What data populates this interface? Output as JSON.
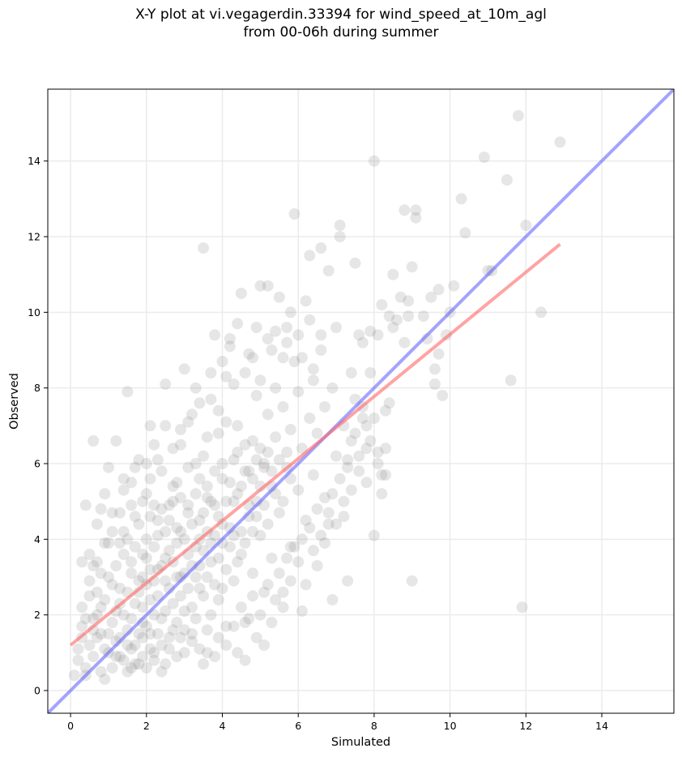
{
  "chart_data": {
    "type": "scatter",
    "title_line1": "X-Y plot at vi.vegagerdin.33394 for wind_speed_at_10m_agl",
    "title_line2": "from 00-06h during summer",
    "xlabel": "Simulated",
    "ylabel": "Observed",
    "xlim": [
      -0.6,
      15.9
    ],
    "ylim": [
      -0.6,
      15.9
    ],
    "xticks": [
      0,
      2,
      4,
      6,
      8,
      10,
      12,
      14
    ],
    "yticks": [
      0,
      2,
      4,
      6,
      8,
      10,
      12,
      14
    ],
    "grid": true,
    "point_color": "#808080",
    "reference_line": {
      "color": "#6666ff",
      "from": [
        -0.6,
        -0.6
      ],
      "to": [
        15.9,
        15.9
      ]
    },
    "regression_line": {
      "color": "#ff6666",
      "from": [
        0,
        1.2
      ],
      "to": [
        12.9,
        11.8
      ]
    },
    "points": [
      [
        0.1,
        0.4
      ],
      [
        0.2,
        1.1
      ],
      [
        0.3,
        1.7
      ],
      [
        0.3,
        3.4
      ],
      [
        0.4,
        4.9
      ],
      [
        0.4,
        0.6
      ],
      [
        0.5,
        2.5
      ],
      [
        0.5,
        3.6
      ],
      [
        0.6,
        6.6
      ],
      [
        0.6,
        1.9
      ],
      [
        0.7,
        4.4
      ],
      [
        0.7,
        3.4
      ],
      [
        0.8,
        2.2
      ],
      [
        0.8,
        4.8
      ],
      [
        0.9,
        0.3
      ],
      [
        0.9,
        5.2
      ],
      [
        1.0,
        5.9
      ],
      [
        1.0,
        1.5
      ],
      [
        1.1,
        2.8
      ],
      [
        1.1,
        4.7
      ],
      [
        1.2,
        6.6
      ],
      [
        1.2,
        0.9
      ],
      [
        1.3,
        3.9
      ],
      [
        1.3,
        2.3
      ],
      [
        1.4,
        5.6
      ],
      [
        1.4,
        4.2
      ],
      [
        1.5,
        7.9
      ],
      [
        1.5,
        1.2
      ],
      [
        1.6,
        3.1
      ],
      [
        1.6,
        5.5
      ],
      [
        1.7,
        0.7
      ],
      [
        1.7,
        4.6
      ],
      [
        1.8,
        2.6
      ],
      [
        1.8,
        6.1
      ],
      [
        1.9,
        3.6
      ],
      [
        1.9,
        1.8
      ],
      [
        2.0,
        5.2
      ],
      [
        2.0,
        4.0
      ],
      [
        2.1,
        7.0
      ],
      [
        2.1,
        2.4
      ],
      [
        2.2,
        6.5
      ],
      [
        2.2,
        1.0
      ],
      [
        2.3,
        4.5
      ],
      [
        2.3,
        3.2
      ],
      [
        2.4,
        5.8
      ],
      [
        2.4,
        0.5
      ],
      [
        2.5,
        2.9
      ],
      [
        2.5,
        8.1
      ],
      [
        2.6,
        4.9
      ],
      [
        2.6,
        3.7
      ],
      [
        2.7,
        6.4
      ],
      [
        2.7,
        1.6
      ],
      [
        2.8,
        5.5
      ],
      [
        2.8,
        4.3
      ],
      [
        2.9,
        3.0
      ],
      [
        2.9,
        6.9
      ],
      [
        3.0,
        8.5
      ],
      [
        3.0,
        2.1
      ],
      [
        3.1,
        4.7
      ],
      [
        3.1,
        5.9
      ],
      [
        3.2,
        1.3
      ],
      [
        3.2,
        7.3
      ],
      [
        3.3,
        3.8
      ],
      [
        3.3,
        8.0
      ],
      [
        3.4,
        4.5
      ],
      [
        3.4,
        2.7
      ],
      [
        3.5,
        6.2
      ],
      [
        3.5,
        11.7
      ],
      [
        3.6,
        5.1
      ],
      [
        3.6,
        1.0
      ],
      [
        3.7,
        3.4
      ],
      [
        3.7,
        7.7
      ],
      [
        3.8,
        9.4
      ],
      [
        3.8,
        4.9
      ],
      [
        3.9,
        2.4
      ],
      [
        3.9,
        6.8
      ],
      [
        4.0,
        5.6
      ],
      [
        4.0,
        3.9
      ],
      [
        4.1,
        8.3
      ],
      [
        4.1,
        1.7
      ],
      [
        4.2,
        4.3
      ],
      [
        4.2,
        9.1
      ],
      [
        4.3,
        6.1
      ],
      [
        4.3,
        2.9
      ],
      [
        4.4,
        5.2
      ],
      [
        4.4,
        7.0
      ],
      [
        4.5,
        3.6
      ],
      [
        4.5,
        10.5
      ],
      [
        4.6,
        5.8
      ],
      [
        4.6,
        1.8
      ],
      [
        4.7,
        4.6
      ],
      [
        4.7,
        8.9
      ],
      [
        4.8,
        6.6
      ],
      [
        4.8,
        3.1
      ],
      [
        4.9,
        5.0
      ],
      [
        4.9,
        7.8
      ],
      [
        5.0,
        10.7
      ],
      [
        5.0,
        4.1
      ],
      [
        5.1,
        6.0
      ],
      [
        5.1,
        2.6
      ],
      [
        5.2,
        7.3
      ],
      [
        5.2,
        9.3
      ],
      [
        5.3,
        5.4
      ],
      [
        5.3,
        3.5
      ],
      [
        5.4,
        8.0
      ],
      [
        5.4,
        6.7
      ],
      [
        5.5,
        10.4
      ],
      [
        5.5,
        4.7
      ],
      [
        5.6,
        7.5
      ],
      [
        5.6,
        2.2
      ],
      [
        5.7,
        9.2
      ],
      [
        5.7,
        5.9
      ],
      [
        5.8,
        6.9
      ],
      [
        5.8,
        3.8
      ],
      [
        5.9,
        8.7
      ],
      [
        5.9,
        12.6
      ],
      [
        6.0,
        5.3
      ],
      [
        6.0,
        7.9
      ],
      [
        6.1,
        2.1
      ],
      [
        6.1,
        6.4
      ],
      [
        6.2,
        10.3
      ],
      [
        6.2,
        4.5
      ],
      [
        6.3,
        11.5
      ],
      [
        6.3,
        7.2
      ],
      [
        6.4,
        5.7
      ],
      [
        6.4,
        8.2
      ],
      [
        6.5,
        3.3
      ],
      [
        6.5,
        6.8
      ],
      [
        6.6,
        9.0
      ],
      [
        6.6,
        11.7
      ],
      [
        6.7,
        5.1
      ],
      [
        6.7,
        7.5
      ],
      [
        6.8,
        4.4
      ],
      [
        6.8,
        11.1
      ],
      [
        6.9,
        2.4
      ],
      [
        6.9,
        8.0
      ],
      [
        7.0,
        6.2
      ],
      [
        7.0,
        9.6
      ],
      [
        7.1,
        12.3
      ],
      [
        7.1,
        12.0
      ],
      [
        7.2,
        7.0
      ],
      [
        7.2,
        4.6
      ],
      [
        7.3,
        2.9
      ],
      [
        7.3,
        5.9
      ],
      [
        7.4,
        8.4
      ],
      [
        7.4,
        6.6
      ],
      [
        7.5,
        7.7
      ],
      [
        7.5,
        11.3
      ],
      [
        7.6,
        9.4
      ],
      [
        7.6,
        5.8
      ],
      [
        7.7,
        7.2
      ],
      [
        7.7,
        9.2
      ],
      [
        7.8,
        6.4
      ],
      [
        7.8,
        5.5
      ],
      [
        7.9,
        8.4
      ],
      [
        7.9,
        9.5
      ],
      [
        8.0,
        14.0
      ],
      [
        8.0,
        4.1
      ],
      [
        8.1,
        6.3
      ],
      [
        8.1,
        9.4
      ],
      [
        8.2,
        10.2
      ],
      [
        8.2,
        5.2
      ],
      [
        8.3,
        6.4
      ],
      [
        8.3,
        5.7
      ],
      [
        8.4,
        9.9
      ],
      [
        8.4,
        7.6
      ],
      [
        8.5,
        11.0
      ],
      [
        8.5,
        9.6
      ],
      [
        8.6,
        9.8
      ],
      [
        8.7,
        10.4
      ],
      [
        8.8,
        12.7
      ],
      [
        8.8,
        9.2
      ],
      [
        8.9,
        10.3
      ],
      [
        8.9,
        9.9
      ],
      [
        9.0,
        11.2
      ],
      [
        9.0,
        2.9
      ],
      [
        9.1,
        12.7
      ],
      [
        9.1,
        12.5
      ],
      [
        9.3,
        9.9
      ],
      [
        9.4,
        9.3
      ],
      [
        9.5,
        10.4
      ],
      [
        9.6,
        8.5
      ],
      [
        9.6,
        8.1
      ],
      [
        9.7,
        8.9
      ],
      [
        9.7,
        10.6
      ],
      [
        9.8,
        7.8
      ],
      [
        9.9,
        9.4
      ],
      [
        10.0,
        10.0
      ],
      [
        10.1,
        10.7
      ],
      [
        10.3,
        13.0
      ],
      [
        10.4,
        12.1
      ],
      [
        10.9,
        14.1
      ],
      [
        11.0,
        11.1
      ],
      [
        11.1,
        11.1
      ],
      [
        11.5,
        13.5
      ],
      [
        11.6,
        8.2
      ],
      [
        11.8,
        15.2
      ],
      [
        11.9,
        2.2
      ],
      [
        12.0,
        12.3
      ],
      [
        12.4,
        10.0
      ],
      [
        12.9,
        14.5
      ],
      [
        0.5,
        1.2
      ],
      [
        0.8,
        1.5
      ],
      [
        0.9,
        2.4
      ],
      [
        1.0,
        1.0
      ],
      [
        1.0,
        3.0
      ],
      [
        1.1,
        1.8
      ],
      [
        1.2,
        2.1
      ],
      [
        1.2,
        3.3
      ],
      [
        1.3,
        1.4
      ],
      [
        1.3,
        2.7
      ],
      [
        1.4,
        0.8
      ],
      [
        1.4,
        2.0
      ],
      [
        1.4,
        3.6
      ],
      [
        1.5,
        1.6
      ],
      [
        1.5,
        2.6
      ],
      [
        1.5,
        4.0
      ],
      [
        1.6,
        0.6
      ],
      [
        1.6,
        1.9
      ],
      [
        1.6,
        3.4
      ],
      [
        1.7,
        2.3
      ],
      [
        1.7,
        1.2
      ],
      [
        1.7,
        3.8
      ],
      [
        1.8,
        1.5
      ],
      [
        1.8,
        2.9
      ],
      [
        1.8,
        4.4
      ],
      [
        1.9,
        0.9
      ],
      [
        1.9,
        2.2
      ],
      [
        1.9,
        3.0
      ],
      [
        2.0,
        1.7
      ],
      [
        2.0,
        2.8
      ],
      [
        2.0,
        3.5
      ],
      [
        2.1,
        1.1
      ],
      [
        2.1,
        3.2
      ],
      [
        2.1,
        4.6
      ],
      [
        2.2,
        2.0
      ],
      [
        2.2,
        2.9
      ],
      [
        2.2,
        3.8
      ],
      [
        2.3,
        1.5
      ],
      [
        2.3,
        2.5
      ],
      [
        2.3,
        4.1
      ],
      [
        2.4,
        1.9
      ],
      [
        2.4,
        3.3
      ],
      [
        2.4,
        4.8
      ],
      [
        2.5,
        2.1
      ],
      [
        2.5,
        3.5
      ],
      [
        2.5,
        4.2
      ],
      [
        2.6,
        1.4
      ],
      [
        2.6,
        2.7
      ],
      [
        2.6,
        4.5
      ],
      [
        2.7,
        2.3
      ],
      [
        2.7,
        3.4
      ],
      [
        2.7,
        5.0
      ],
      [
        2.8,
        1.8
      ],
      [
        2.8,
        3.0
      ],
      [
        2.8,
        3.9
      ],
      [
        2.9,
        2.5
      ],
      [
        2.9,
        4.2
      ],
      [
        2.9,
        5.1
      ],
      [
        3.0,
        1.6
      ],
      [
        3.0,
        3.1
      ],
      [
        3.0,
        4.0
      ],
      [
        3.1,
        2.7
      ],
      [
        3.1,
        3.6
      ],
      [
        3.1,
        4.9
      ],
      [
        3.2,
        2.2
      ],
      [
        3.2,
        3.3
      ],
      [
        3.2,
        4.4
      ],
      [
        3.3,
        1.9
      ],
      [
        3.3,
        3.0
      ],
      [
        3.3,
        5.2
      ],
      [
        3.4,
        3.3
      ],
      [
        3.4,
        4.0
      ],
      [
        3.4,
        5.6
      ],
      [
        3.5,
        2.5
      ],
      [
        3.5,
        3.7
      ],
      [
        3.5,
        4.7
      ],
      [
        3.6,
        3.0
      ],
      [
        3.6,
        4.2
      ],
      [
        3.6,
        5.4
      ],
      [
        3.7,
        2.0
      ],
      [
        3.7,
        3.9
      ],
      [
        3.7,
        5.0
      ],
      [
        3.8,
        2.8
      ],
      [
        3.8,
        4.1
      ],
      [
        3.8,
        5.8
      ],
      [
        3.9,
        3.5
      ],
      [
        3.9,
        4.6
      ],
      [
        4.0,
        2.7
      ],
      [
        4.0,
        4.4
      ],
      [
        4.0,
        6.0
      ],
      [
        4.1,
        3.2
      ],
      [
        4.1,
        5.0
      ],
      [
        4.2,
        3.8
      ],
      [
        4.2,
        5.5
      ],
      [
        4.3,
        4.1
      ],
      [
        4.3,
        5.0
      ],
      [
        4.4,
        3.4
      ],
      [
        4.4,
        6.3
      ],
      [
        4.5,
        4.2
      ],
      [
        4.5,
        5.4
      ],
      [
        4.6,
        3.9
      ],
      [
        4.6,
        6.5
      ],
      [
        4.7,
        4.9
      ],
      [
        4.7,
        5.8
      ],
      [
        4.8,
        4.2
      ],
      [
        4.8,
        5.6
      ],
      [
        4.9,
        6.1
      ],
      [
        4.9,
        4.6
      ],
      [
        5.0,
        5.4
      ],
      [
        5.0,
        6.4
      ],
      [
        5.1,
        4.9
      ],
      [
        5.1,
        5.9
      ],
      [
        5.2,
        6.3
      ],
      [
        5.2,
        4.4
      ],
      [
        5.3,
        5.8
      ],
      [
        5.4,
        5.2
      ],
      [
        5.5,
        6.1
      ],
      [
        5.6,
        5.0
      ],
      [
        5.7,
        6.3
      ],
      [
        5.8,
        5.6
      ],
      [
        0.2,
        0.8
      ],
      [
        0.4,
        0.4
      ],
      [
        0.6,
        0.9
      ],
      [
        0.7,
        1.4
      ],
      [
        0.8,
        0.5
      ],
      [
        0.9,
        1.1
      ],
      [
        1.1,
        0.6
      ],
      [
        1.2,
        1.3
      ],
      [
        1.3,
        0.9
      ],
      [
        1.5,
        0.5
      ],
      [
        1.6,
        1.1
      ],
      [
        1.8,
        0.7
      ],
      [
        1.9,
        1.4
      ],
      [
        2.0,
        0.6
      ],
      [
        2.1,
        1.5
      ],
      [
        2.2,
        0.8
      ],
      [
        2.4,
        1.2
      ],
      [
        2.5,
        0.7
      ],
      [
        2.6,
        1.1
      ],
      [
        2.8,
        0.9
      ],
      [
        2.9,
        1.4
      ],
      [
        3.0,
        1.0
      ],
      [
        3.2,
        1.5
      ],
      [
        3.4,
        1.1
      ],
      [
        3.5,
        0.7
      ],
      [
        3.6,
        1.6
      ],
      [
        3.8,
        0.9
      ],
      [
        3.9,
        1.4
      ],
      [
        4.1,
        1.2
      ],
      [
        4.3,
        1.7
      ],
      [
        4.4,
        1.0
      ],
      [
        4.5,
        2.2
      ],
      [
        4.6,
        0.8
      ],
      [
        4.7,
        1.9
      ],
      [
        4.8,
        2.5
      ],
      [
        4.9,
        1.4
      ],
      [
        5.0,
        2.0
      ],
      [
        5.1,
        1.2
      ],
      [
        5.2,
        2.8
      ],
      [
        5.3,
        1.8
      ],
      [
        5.4,
        2.4
      ],
      [
        5.5,
        3.1
      ],
      [
        5.6,
        2.6
      ],
      [
        5.7,
        3.5
      ],
      [
        5.8,
        2.9
      ],
      [
        5.9,
        3.8
      ],
      [
        6.0,
        3.4
      ],
      [
        6.1,
        4.0
      ],
      [
        6.2,
        2.8
      ],
      [
        6.3,
        4.3
      ],
      [
        6.4,
        3.7
      ],
      [
        6.5,
        4.8
      ],
      [
        6.6,
        4.1
      ],
      [
        6.7,
        3.9
      ],
      [
        6.8,
        4.7
      ],
      [
        6.9,
        5.2
      ],
      [
        7.0,
        4.4
      ],
      [
        7.1,
        5.6
      ],
      [
        7.2,
        5.0
      ],
      [
        7.3,
        6.1
      ],
      [
        7.4,
        5.3
      ],
      [
        7.5,
        6.8
      ],
      [
        7.6,
        6.2
      ],
      [
        7.7,
        7.5
      ],
      [
        7.8,
        7.0
      ],
      [
        7.9,
        6.6
      ],
      [
        8.0,
        7.2
      ],
      [
        8.1,
        6.0
      ],
      [
        8.2,
        5.7
      ],
      [
        8.3,
        7.4
      ],
      [
        2.3,
        6.1
      ],
      [
        2.5,
        7.0
      ],
      [
        2.7,
        5.4
      ],
      [
        2.9,
        6.5
      ],
      [
        3.1,
        7.1
      ],
      [
        3.3,
        6.0
      ],
      [
        3.4,
        7.6
      ],
      [
        3.6,
        6.7
      ],
      [
        3.7,
        8.4
      ],
      [
        3.9,
        7.4
      ],
      [
        4.0,
        8.7
      ],
      [
        4.1,
        7.1
      ],
      [
        4.2,
        9.3
      ],
      [
        4.3,
        8.1
      ],
      [
        4.4,
        9.7
      ],
      [
        4.6,
        8.4
      ],
      [
        4.8,
        8.8
      ],
      [
        4.9,
        9.6
      ],
      [
        5.0,
        8.2
      ],
      [
        5.2,
        10.7
      ],
      [
        5.3,
        9.0
      ],
      [
        5.4,
        9.5
      ],
      [
        5.6,
        8.8
      ],
      [
        5.7,
        9.6
      ],
      [
        5.8,
        10.0
      ],
      [
        6.0,
        9.4
      ],
      [
        6.1,
        8.8
      ],
      [
        6.3,
        9.8
      ],
      [
        6.4,
        8.5
      ],
      [
        6.6,
        9.4
      ],
      [
        1.0,
        3.9
      ],
      [
        1.1,
        4.2
      ],
      [
        1.3,
        4.7
      ],
      [
        1.4,
        5.3
      ],
      [
        1.6,
        4.9
      ],
      [
        1.7,
        5.9
      ],
      [
        1.9,
        5.0
      ],
      [
        2.0,
        6.0
      ],
      [
        2.1,
        5.6
      ],
      [
        2.2,
        4.9
      ],
      [
        0.3,
        2.2
      ],
      [
        0.5,
        2.9
      ],
      [
        0.6,
        3.3
      ],
      [
        0.7,
        2.6
      ],
      [
        0.8,
        3.1
      ],
      [
        0.9,
        3.9
      ],
      [
        0.3,
        1.4
      ],
      [
        0.4,
        1.9
      ],
      [
        0.6,
        1.6
      ],
      [
        0.7,
        2.0
      ]
    ]
  }
}
